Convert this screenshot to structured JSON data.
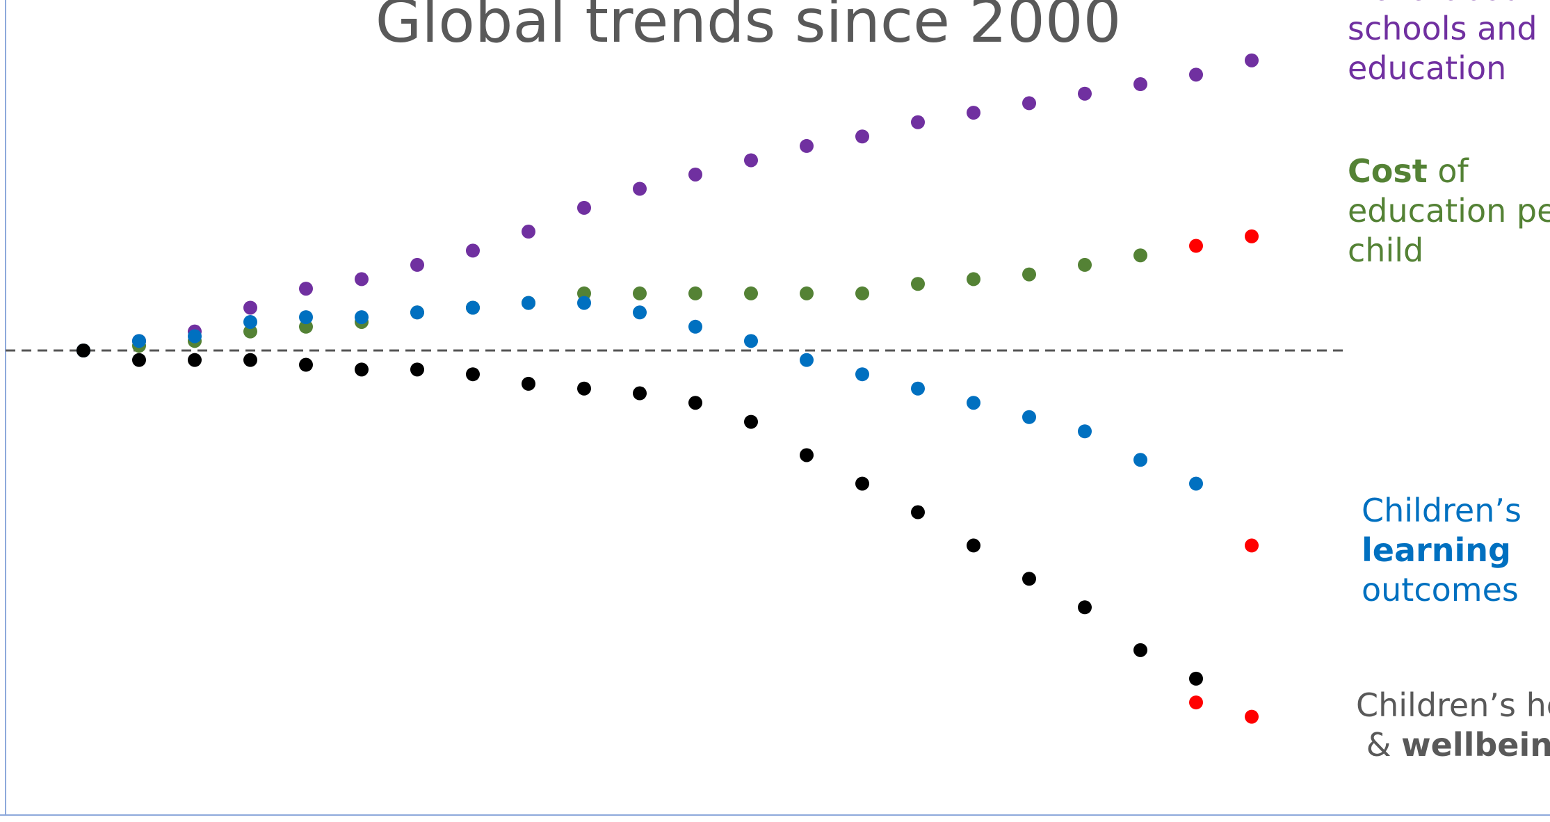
{
  "chart_data": {
    "type": "scatter",
    "title": "Global trends since 2000",
    "xlabel": "",
    "ylabel": "",
    "grid": false,
    "xlim": [
      1999,
      2023
    ],
    "ylim": [
      -1.0,
      0.8
    ],
    "baseline": 0,
    "legend_placement": "right",
    "series": [
      {
        "name": "Data about schools and education",
        "color": "#7030A0",
        "x": [
          2000,
          2001,
          2002,
          2003,
          2004,
          2005,
          2006,
          2007,
          2008,
          2009,
          2010,
          2011,
          2012,
          2013,
          2014,
          2015,
          2016,
          2017,
          2018,
          2019,
          2020
        ],
        "y": [
          0.0,
          0.02,
          0.04,
          0.09,
          0.13,
          0.15,
          0.18,
          0.21,
          0.25,
          0.3,
          0.34,
          0.37,
          0.4,
          0.43,
          0.45,
          0.48,
          0.5,
          0.52,
          0.54,
          0.56,
          0.58
        ]
      },
      {
        "name": "Cost of education per child",
        "color": "#548235",
        "x": [
          2000,
          2001,
          2002,
          2003,
          2004,
          2005,
          2006,
          2007,
          2008,
          2009,
          2010,
          2011,
          2012,
          2013,
          2014,
          2015,
          2016,
          2017,
          2018,
          2019,
          2020
        ],
        "y": [
          0.0,
          0.01,
          0.02,
          0.04,
          0.05,
          0.06,
          0.08,
          0.09,
          0.1,
          0.12,
          0.12,
          0.12,
          0.12,
          0.12,
          0.12,
          0.14,
          0.15,
          0.16,
          0.18,
          0.2,
          0.22
        ],
        "highlight_last": "#FF0000"
      },
      {
        "name": "Children’s learning outcomes",
        "color": "#0070C0",
        "x": [
          2000,
          2001,
          2002,
          2003,
          2004,
          2005,
          2006,
          2007,
          2008,
          2009,
          2010,
          2011,
          2012,
          2013,
          2014,
          2015,
          2016,
          2017,
          2018,
          2019,
          2020
        ],
        "y": [
          0.0,
          0.02,
          0.03,
          0.06,
          0.07,
          0.07,
          0.08,
          0.09,
          0.1,
          0.1,
          0.08,
          0.05,
          0.02,
          -0.02,
          -0.05,
          -0.08,
          -0.11,
          -0.14,
          -0.17,
          -0.23,
          -0.28
        ]
      },
      {
        "name": "Children’s health & wellbeing",
        "color": "#000000",
        "x": [
          2000,
          2001,
          2002,
          2003,
          2004,
          2005,
          2006,
          2007,
          2008,
          2009,
          2010,
          2011,
          2012,
          2013,
          2014,
          2015,
          2016,
          2017,
          2018,
          2019,
          2020
        ],
        "y": [
          0.0,
          -0.02,
          -0.02,
          -0.02,
          -0.03,
          -0.04,
          -0.04,
          -0.05,
          -0.07,
          -0.08,
          -0.09,
          -0.11,
          -0.15,
          -0.22,
          -0.28,
          -0.34,
          -0.41,
          -0.48,
          -0.54,
          -0.63,
          -0.69
        ]
      }
    ],
    "end_markers": [
      {
        "x": 2020,
        "y": -0.74,
        "color": "#FF0000"
      },
      {
        "x": 2021,
        "y": -0.77,
        "color": "#FF0000"
      },
      {
        "x": 2021,
        "y": -0.41,
        "color": "#FF0000"
      },
      {
        "x": 2021,
        "y": 0.24,
        "color": "#FF0000"
      },
      {
        "x": 2021,
        "y": 0.61,
        "color": "#7030A0"
      }
    ],
    "legend": [
      {
        "color": "#7030A0",
        "lines": [
          [
            {
              "t": "Data",
              "bold": true
            },
            {
              "t": " about",
              "bold": false
            }
          ],
          [
            {
              "t": "schools and",
              "bold": false
            }
          ],
          [
            {
              "t": "education",
              "bold": false
            }
          ]
        ]
      },
      {
        "color": "#548235",
        "lines": [
          [
            {
              "t": "Cost",
              "bold": true
            },
            {
              "t": " of",
              "bold": false
            }
          ],
          [
            {
              "t": "education per",
              "bold": false
            }
          ],
          [
            {
              "t": "child",
              "bold": false
            }
          ]
        ]
      },
      {
        "color": "#0070C0",
        "lines": [
          [
            {
              "t": "Children’s",
              "bold": false
            }
          ],
          [
            {
              "t": "learning",
              "bold": true
            }
          ],
          [
            {
              "t": "outcomes",
              "bold": false
            }
          ]
        ]
      },
      {
        "color": "#595959",
        "lines": [
          [
            {
              "t": "Children’s health",
              "bold": false
            }
          ],
          [
            {
              "t": " & ",
              "bold": false
            },
            {
              "t": "wellbeing",
              "bold": true
            }
          ]
        ]
      }
    ]
  }
}
